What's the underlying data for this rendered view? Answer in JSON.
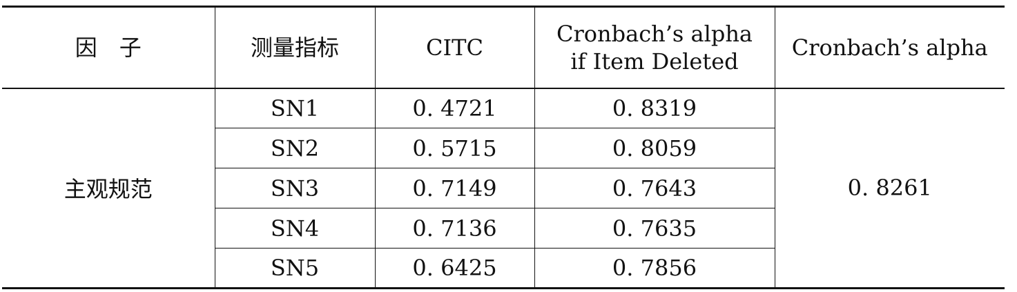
{
  "table": {
    "headers": {
      "factor": "因　子",
      "indicator": "测量指标",
      "citc": "CITC",
      "alpha_deleted_line1": "Cronbach’s alpha",
      "alpha_deleted_line2": "if Item Deleted",
      "alpha": "Cronbach’s alpha"
    },
    "factor": "主观规范",
    "alpha": "0. 8261",
    "rows": [
      {
        "indicator": "SN1",
        "citc": "0. 4721",
        "alpha_if_deleted": "0. 8319"
      },
      {
        "indicator": "SN2",
        "citc": "0. 5715",
        "alpha_if_deleted": "0. 8059"
      },
      {
        "indicator": "SN3",
        "citc": "0. 7149",
        "alpha_if_deleted": "0. 7643"
      },
      {
        "indicator": "SN4",
        "citc": "0. 7136",
        "alpha_if_deleted": "0. 7635"
      },
      {
        "indicator": "SN5",
        "citc": "0. 6425",
        "alpha_if_deleted": "0. 7856"
      }
    ]
  }
}
